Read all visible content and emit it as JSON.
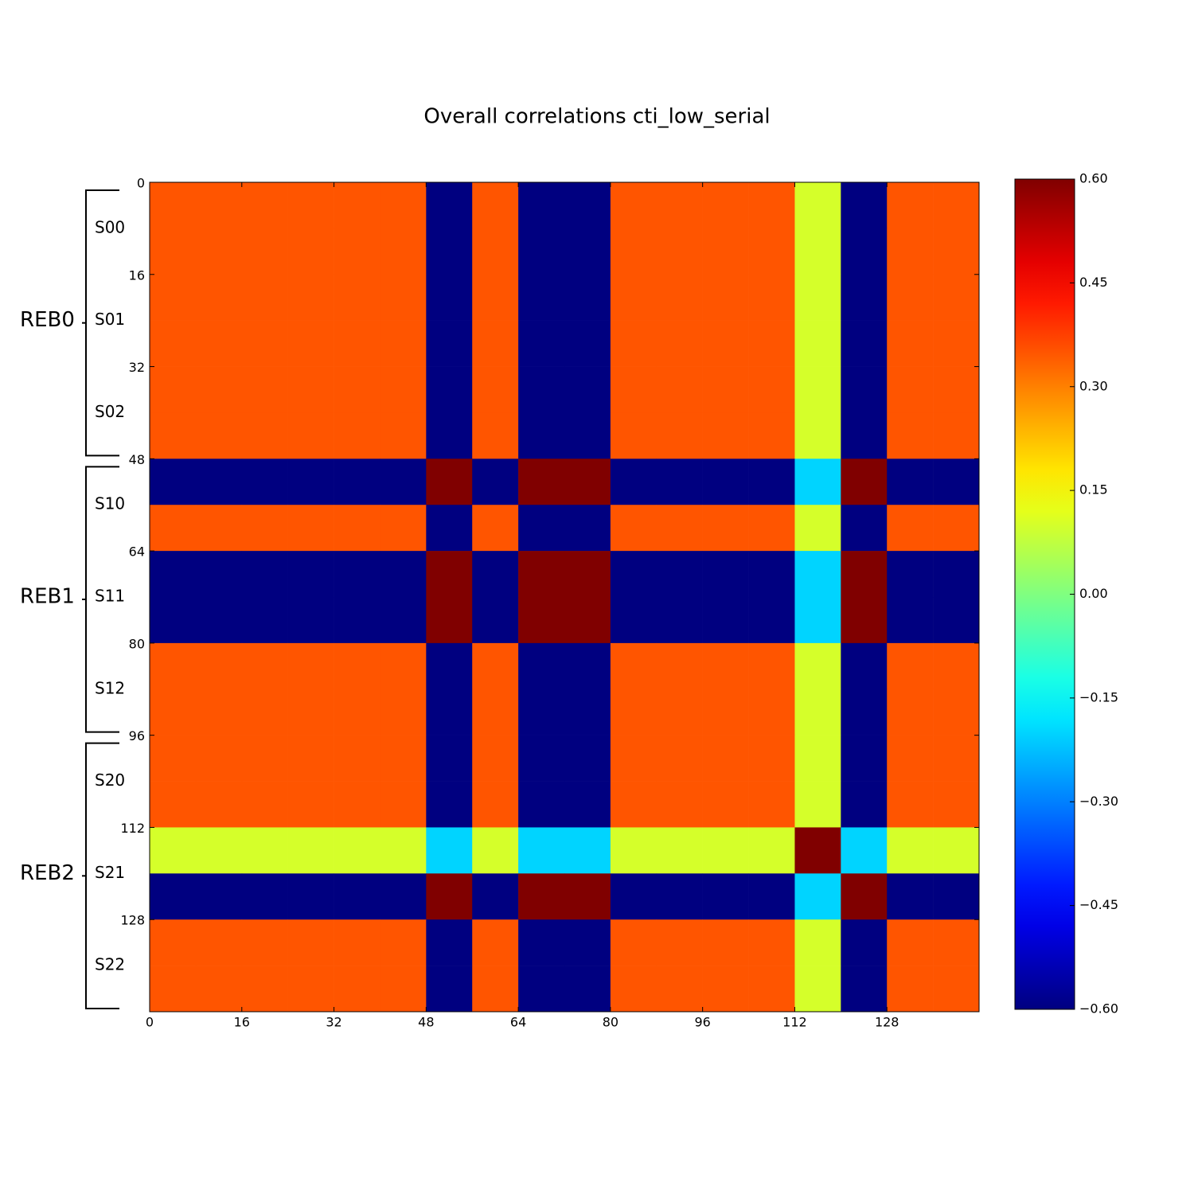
{
  "chart_data": {
    "type": "heatmap",
    "title": "Overall correlations cti_low_serial",
    "colormap": "jet",
    "xlim": [
      0,
      144
    ],
    "ylim": [
      144,
      0
    ],
    "xticks": [
      0,
      16,
      32,
      48,
      64,
      80,
      96,
      112,
      128
    ],
    "yticks": [
      0,
      16,
      32,
      48,
      64,
      80,
      96,
      112,
      128
    ],
    "clim": [
      -0.6,
      0.6
    ],
    "cticks": [
      {
        "value": 0.6,
        "label": "0.60"
      },
      {
        "value": 0.45,
        "label": "0.45"
      },
      {
        "value": 0.3,
        "label": "0.30"
      },
      {
        "value": 0.15,
        "label": "0.15"
      },
      {
        "value": 0,
        "label": "0.00"
      },
      {
        "value": -0.15,
        "label": "−0.15"
      },
      {
        "value": -0.3,
        "label": "−0.30"
      },
      {
        "value": -0.45,
        "label": "−0.45"
      },
      {
        "value": -0.6,
        "label": "−0.60"
      }
    ],
    "groups": [
      {
        "label": "REB0",
        "range": [
          0,
          48
        ]
      },
      {
        "label": "REB1",
        "range": [
          48,
          96
        ]
      },
      {
        "label": "REB2",
        "range": [
          96,
          144
        ]
      }
    ],
    "subgroups": [
      {
        "label": "S00",
        "range": [
          0,
          16
        ]
      },
      {
        "label": "S01",
        "range": [
          16,
          32
        ]
      },
      {
        "label": "S02",
        "range": [
          32,
          48
        ]
      },
      {
        "label": "S10",
        "range": [
          48,
          64
        ]
      },
      {
        "label": "S11",
        "range": [
          64,
          80
        ]
      },
      {
        "label": "S12",
        "range": [
          80,
          96
        ]
      },
      {
        "label": "S20",
        "range": [
          96,
          112
        ]
      },
      {
        "label": "S21",
        "range": [
          112,
          128
        ]
      },
      {
        "label": "S22",
        "range": [
          128,
          144
        ]
      }
    ],
    "z": [
      [
        0.35,
        0.35,
        0.35,
        0.35,
        0.35,
        0.35,
        -0.6,
        0.35,
        -0.6,
        -0.6,
        0.35,
        0.35,
        0.35,
        0.35,
        0.1,
        -0.6,
        0.35,
        0.35
      ],
      [
        0.35,
        0.35,
        0.35,
        0.35,
        0.35,
        0.35,
        -0.6,
        0.35,
        -0.6,
        -0.6,
        0.35,
        0.35,
        0.35,
        0.35,
        0.1,
        -0.6,
        0.35,
        0.35
      ],
      [
        0.35,
        0.35,
        0.35,
        0.35,
        0.35,
        0.35,
        -0.6,
        0.35,
        -0.6,
        -0.6,
        0.35,
        0.35,
        0.35,
        0.35,
        0.1,
        -0.6,
        0.35,
        0.35
      ],
      [
        0.35,
        0.35,
        0.35,
        0.35,
        0.35,
        0.35,
        -0.6,
        0.35,
        -0.6,
        -0.6,
        0.35,
        0.35,
        0.35,
        0.35,
        0.1,
        -0.6,
        0.35,
        0.35
      ],
      [
        0.35,
        0.35,
        0.35,
        0.35,
        0.35,
        0.35,
        -0.6,
        0.35,
        -0.6,
        -0.6,
        0.35,
        0.35,
        0.35,
        0.35,
        0.1,
        -0.6,
        0.35,
        0.35
      ],
      [
        0.35,
        0.35,
        0.35,
        0.35,
        0.35,
        0.35,
        -0.6,
        0.35,
        -0.6,
        -0.6,
        0.35,
        0.35,
        0.35,
        0.35,
        0.1,
        -0.6,
        0.35,
        0.35
      ],
      [
        -0.6,
        -0.6,
        -0.6,
        -0.6,
        -0.6,
        -0.6,
        0.6,
        -0.6,
        0.6,
        0.6,
        -0.6,
        -0.6,
        -0.6,
        -0.6,
        -0.2,
        0.6,
        -0.6,
        -0.6
      ],
      [
        0.35,
        0.35,
        0.35,
        0.35,
        0.35,
        0.35,
        -0.6,
        0.35,
        -0.6,
        -0.6,
        0.35,
        0.35,
        0.35,
        0.35,
        0.1,
        -0.6,
        0.35,
        0.35
      ],
      [
        -0.6,
        -0.6,
        -0.6,
        -0.6,
        -0.6,
        -0.6,
        0.6,
        -0.6,
        0.6,
        0.6,
        -0.6,
        -0.6,
        -0.6,
        -0.6,
        -0.2,
        0.6,
        -0.6,
        -0.6
      ],
      [
        -0.6,
        -0.6,
        -0.6,
        -0.6,
        -0.6,
        -0.6,
        0.6,
        -0.6,
        0.6,
        0.6,
        -0.6,
        -0.6,
        -0.6,
        -0.6,
        -0.2,
        0.6,
        -0.6,
        -0.6
      ],
      [
        0.35,
        0.35,
        0.35,
        0.35,
        0.35,
        0.35,
        -0.6,
        0.35,
        -0.6,
        -0.6,
        0.35,
        0.35,
        0.35,
        0.35,
        0.1,
        -0.6,
        0.35,
        0.35
      ],
      [
        0.35,
        0.35,
        0.35,
        0.35,
        0.35,
        0.35,
        -0.6,
        0.35,
        -0.6,
        -0.6,
        0.35,
        0.35,
        0.35,
        0.35,
        0.1,
        -0.6,
        0.35,
        0.35
      ],
      [
        0.35,
        0.35,
        0.35,
        0.35,
        0.35,
        0.35,
        -0.6,
        0.35,
        -0.6,
        -0.6,
        0.35,
        0.35,
        0.35,
        0.35,
        0.1,
        -0.6,
        0.35,
        0.35
      ],
      [
        0.35,
        0.35,
        0.35,
        0.35,
        0.35,
        0.35,
        -0.6,
        0.35,
        -0.6,
        -0.6,
        0.35,
        0.35,
        0.35,
        0.35,
        0.1,
        -0.6,
        0.35,
        0.35
      ],
      [
        0.1,
        0.1,
        0.1,
        0.1,
        0.1,
        0.1,
        -0.2,
        0.1,
        -0.2,
        -0.2,
        0.1,
        0.1,
        0.1,
        0.1,
        0.6,
        -0.2,
        0.1,
        0.1
      ],
      [
        -0.6,
        -0.6,
        -0.6,
        -0.6,
        -0.6,
        -0.6,
        0.6,
        -0.6,
        0.6,
        0.6,
        -0.6,
        -0.6,
        -0.6,
        -0.6,
        -0.2,
        0.6,
        -0.6,
        -0.6
      ],
      [
        0.35,
        0.35,
        0.35,
        0.35,
        0.35,
        0.35,
        -0.6,
        0.35,
        -0.6,
        -0.6,
        0.35,
        0.35,
        0.35,
        0.35,
        0.1,
        -0.6,
        0.35,
        0.35
      ],
      [
        0.35,
        0.35,
        0.35,
        0.35,
        0.35,
        0.35,
        -0.6,
        0.35,
        -0.6,
        -0.6,
        0.35,
        0.35,
        0.35,
        0.35,
        0.1,
        -0.6,
        0.35,
        0.35
      ]
    ]
  }
}
